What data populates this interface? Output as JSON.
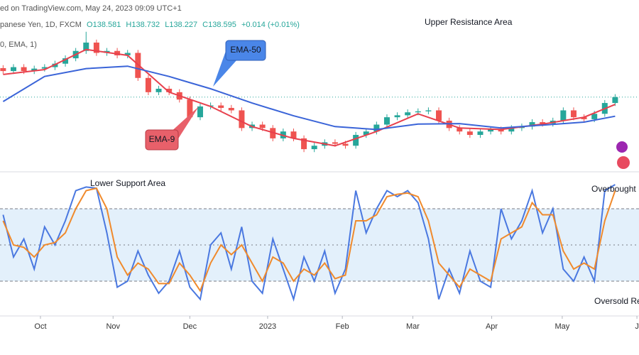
{
  "header": {
    "attribution": "ed on TradingView.com, May 24, 2023 09:09 UTC+1",
    "symbol": "panese Yen, 1D, FXCM",
    "ohlc": [
      "O138.581",
      "H138.732",
      "L138.227",
      "C138.595",
      "+0.014 (+0.01%)"
    ],
    "indicator": "0, EMA, 1)"
  },
  "chart_data": [
    {
      "type": "candlestick",
      "up_color": "#26a69a",
      "down_color": "#ef5350",
      "price_line_color": "#26a69a",
      "xlim": [
        -0.3,
        61.3
      ],
      "ylim": [
        124.4,
        156.2
      ],
      "open": [
        144.5,
        143.9,
        144.7,
        143.9,
        144.4,
        144.7,
        145.4,
        146.5,
        148.0,
        149.7,
        147.6,
        148.0,
        147.1,
        147.6,
        142.5,
        139.6,
        140.3,
        139.6,
        138.1,
        134.5,
        136.7,
        136.9,
        136.4,
        135.9,
        132.3,
        133.0,
        132.3,
        130.2,
        131.6,
        130.2,
        128.0,
        128.7,
        129.4,
        129.1,
        128.7,
        130.9,
        131.6,
        133.0,
        134.5,
        134.9,
        135.5,
        135.7,
        135.9,
        133.8,
        132.3,
        131.6,
        130.9,
        131.6,
        132.0,
        131.6,
        132.3,
        132.6,
        133.5,
        133.2,
        133.8,
        135.9,
        134.5,
        134.1,
        135.2,
        137.4
      ],
      "high": [
        145.1,
        145.3,
        145.3,
        145.0,
        145.3,
        146.0,
        147.1,
        148.6,
        151.9,
        150.3,
        148.6,
        148.6,
        148.2,
        148.2,
        143.1,
        140.9,
        140.9,
        140.2,
        138.7,
        137.3,
        137.5,
        137.5,
        137.0,
        136.5,
        133.6,
        133.6,
        132.9,
        132.2,
        132.2,
        130.8,
        129.3,
        130.0,
        130.0,
        129.7,
        131.5,
        132.2,
        133.6,
        135.1,
        135.5,
        136.1,
        136.3,
        136.5,
        136.5,
        134.4,
        132.9,
        132.2,
        132.2,
        132.6,
        132.6,
        132.9,
        133.2,
        134.1,
        134.1,
        134.4,
        136.5,
        136.5,
        135.1,
        135.8,
        138.0,
        139.2
      ],
      "low": [
        143.3,
        143.3,
        143.3,
        143.3,
        143.8,
        144.1,
        144.8,
        145.9,
        147.4,
        147.0,
        147.0,
        146.5,
        146.5,
        141.9,
        139.0,
        139.0,
        139.0,
        137.5,
        133.9,
        133.9,
        136.1,
        135.8,
        135.3,
        131.7,
        131.7,
        131.7,
        129.6,
        129.6,
        129.6,
        127.4,
        127.4,
        128.1,
        128.5,
        128.1,
        128.1,
        130.3,
        131.0,
        132.4,
        133.9,
        134.3,
        134.9,
        135.1,
        133.2,
        131.7,
        131.0,
        130.3,
        130.3,
        131.0,
        131.0,
        131.0,
        131.7,
        132.0,
        132.6,
        132.6,
        133.2,
        133.9,
        133.5,
        133.5,
        134.6,
        136.8
      ],
      "close": [
        143.9,
        144.7,
        143.9,
        144.4,
        144.7,
        145.4,
        146.5,
        148.0,
        149.7,
        147.6,
        148.0,
        147.1,
        147.6,
        142.5,
        139.6,
        140.3,
        139.6,
        138.1,
        134.5,
        136.7,
        136.9,
        136.4,
        135.9,
        132.3,
        133.0,
        132.3,
        130.2,
        131.6,
        130.2,
        128.0,
        128.7,
        129.4,
        129.1,
        128.7,
        130.9,
        131.6,
        133.0,
        134.5,
        134.9,
        135.5,
        135.7,
        135.9,
        133.8,
        132.3,
        131.6,
        130.9,
        131.6,
        132.0,
        131.6,
        132.3,
        132.6,
        133.5,
        133.2,
        133.8,
        135.9,
        134.5,
        134.1,
        135.2,
        137.4,
        138.6
      ],
      "series": [
        {
          "name": "EMA-9",
          "color": "#e8404d",
          "x": [
            0,
            4,
            8,
            12,
            16,
            20,
            24,
            28,
            32,
            36,
            40,
            44,
            48,
            52,
            56,
            59
          ],
          "values": [
            143.2,
            144.2,
            148.3,
            147.1,
            139.6,
            136.7,
            132.6,
            130.2,
            128.7,
            131.6,
            135.2,
            132.3,
            132.0,
            133.1,
            134.5,
            137.1
          ]
        },
        {
          "name": "EMA-50",
          "color": "#3a64d8",
          "x": [
            0,
            4,
            8,
            12,
            16,
            20,
            24,
            28,
            32,
            36,
            40,
            44,
            48,
            52,
            56,
            59
          ],
          "values": [
            137.7,
            142.8,
            144.4,
            144.9,
            142.8,
            140.3,
            137.4,
            134.8,
            132.6,
            132.0,
            133.1,
            133.2,
            132.3,
            132.9,
            133.5,
            134.7
          ]
        }
      ],
      "annotations": [
        "Upper Resistance Area",
        "EMA-50",
        "EMA-9"
      ]
    },
    {
      "type": "line",
      "xlim": [
        -0.3,
        61.3
      ],
      "ylim": [
        0,
        100
      ],
      "levels": [
        20,
        50,
        80
      ],
      "band_color": "#e3f0fb",
      "xticks": [
        {
          "value": 3.6,
          "label": "Oct"
        },
        {
          "value": 10.6,
          "label": "Nov"
        },
        {
          "value": 18.0,
          "label": "Dec"
        },
        {
          "value": 25.5,
          "label": "2023"
        },
        {
          "value": 32.7,
          "label": "Feb"
        },
        {
          "value": 39.5,
          "label": "Mar"
        },
        {
          "value": 47.1,
          "label": "Apr"
        },
        {
          "value": 53.9,
          "label": "May"
        },
        {
          "value": 61.1,
          "label": "J"
        }
      ],
      "series": [
        {
          "color": "#4a78e0",
          "values": [
            75,
            40,
            55,
            30,
            65,
            50,
            70,
            95,
            98,
            97,
            60,
            15,
            20,
            45,
            25,
            10,
            20,
            45,
            15,
            5,
            50,
            60,
            30,
            65,
            20,
            10,
            55,
            30,
            5,
            40,
            20,
            45,
            10,
            30,
            95,
            60,
            80,
            95,
            90,
            95,
            85,
            55,
            5,
            30,
            10,
            45,
            20,
            15,
            80,
            55,
            70,
            95,
            60,
            80,
            30,
            20,
            40,
            20,
            95,
            100
          ]
        },
        {
          "color": "#f08a2c",
          "values": [
            70,
            50,
            48,
            40,
            50,
            52,
            60,
            80,
            95,
            97,
            80,
            40,
            25,
            35,
            30,
            18,
            18,
            35,
            25,
            12,
            35,
            50,
            42,
            50,
            35,
            20,
            40,
            35,
            20,
            30,
            25,
            35,
            22,
            25,
            70,
            70,
            75,
            90,
            92,
            93,
            90,
            70,
            35,
            25,
            15,
            30,
            25,
            20,
            55,
            60,
            65,
            85,
            75,
            75,
            45,
            30,
            35,
            30,
            70,
            95
          ]
        }
      ],
      "annotations": [
        "Lower Support Area",
        "Overbought R",
        "Oversold Re"
      ]
    }
  ]
}
